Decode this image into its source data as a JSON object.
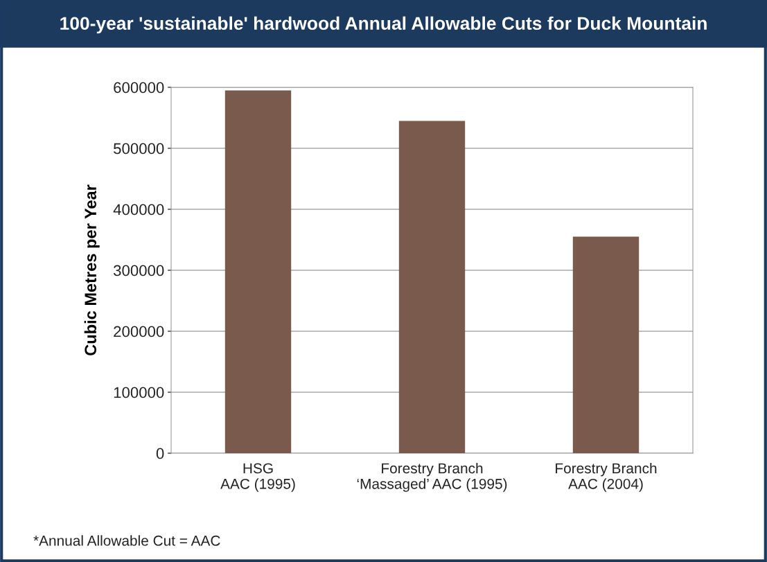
{
  "chart_data": {
    "type": "bar",
    "title": "100-year 'sustainable' hardwood Annual Allowable Cuts for Duck Mountain",
    "categories": [
      "HSG\nAAC (1995)",
      "Forestry Branch\n‘Massaged’ AAC (1995)",
      "Forestry Branch\nAAC (2004)"
    ],
    "values": [
      595000,
      545000,
      355000
    ],
    "color": "#7a5a4c",
    "ylabel": "Cubic Metres per Year",
    "ylim": [
      0,
      600000
    ],
    "yticks": [
      0,
      100000,
      200000,
      300000,
      400000,
      500000,
      600000
    ],
    "grid": "y",
    "annotations": [
      "*Annual Allowable Cut = AAC"
    ]
  }
}
